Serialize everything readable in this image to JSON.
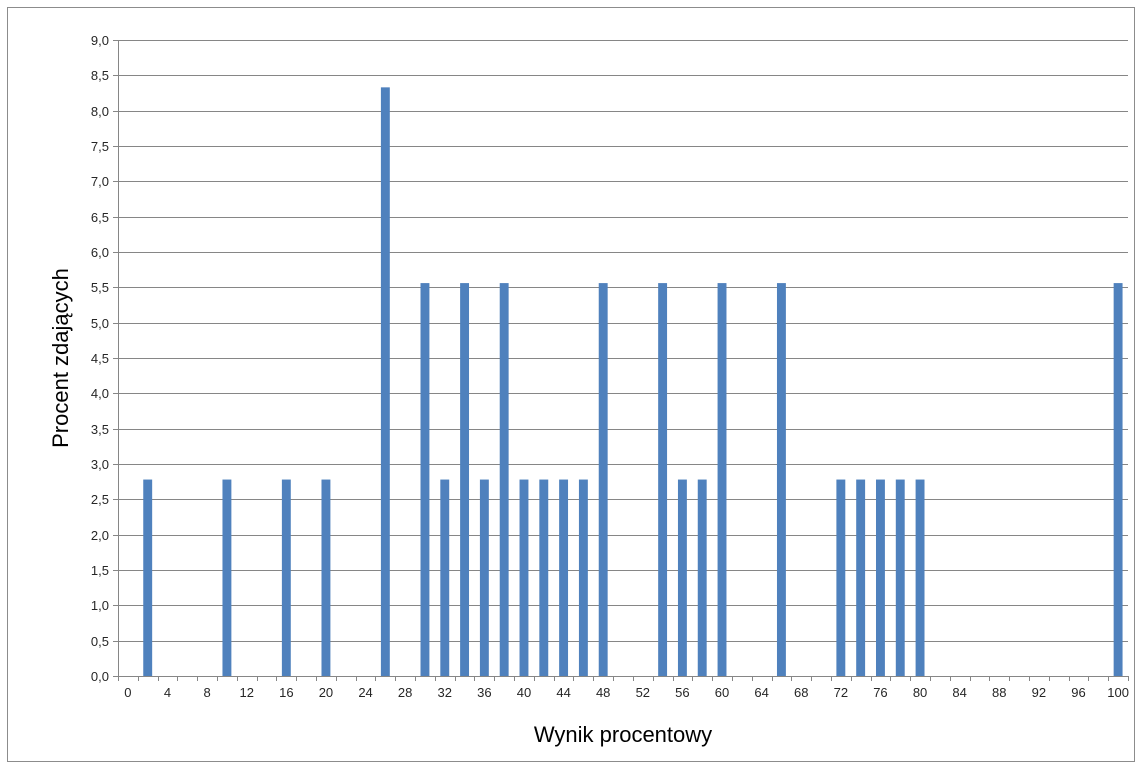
{
  "chart_data": {
    "type": "bar",
    "title": "",
    "xlabel": "Wynik procentowy",
    "ylabel": "Procent zdających",
    "xlim": [
      0,
      100
    ],
    "ylim": [
      0,
      9
    ],
    "x_ticks": [
      "0",
      "4",
      "8",
      "12",
      "16",
      "20",
      "24",
      "28",
      "32",
      "36",
      "40",
      "44",
      "48",
      "52",
      "56",
      "60",
      "64",
      "68",
      "72",
      "76",
      "80",
      "84",
      "88",
      "92",
      "96",
      "100"
    ],
    "y_ticks": [
      "0,0",
      "0,5",
      "1,0",
      "1,5",
      "2,0",
      "2,5",
      "3,0",
      "3,5",
      "4,0",
      "4,5",
      "5,0",
      "5,5",
      "6,0",
      "6,5",
      "7,0",
      "7,5",
      "8,0",
      "8,5",
      "9,0"
    ],
    "grid": true,
    "series": [
      {
        "color": "#4f81bd",
        "x": [
          2,
          10,
          16,
          20,
          26,
          30,
          32,
          34,
          36,
          38,
          40,
          42,
          44,
          46,
          48,
          54,
          56,
          58,
          60,
          66,
          72,
          74,
          76,
          78,
          80,
          100
        ],
        "values": [
          2.78,
          2.78,
          2.78,
          2.78,
          8.33,
          5.56,
          2.78,
          5.56,
          2.78,
          5.56,
          2.78,
          2.78,
          2.78,
          2.78,
          5.56,
          5.56,
          2.78,
          2.78,
          5.56,
          5.56,
          2.78,
          2.78,
          2.78,
          2.78,
          2.78,
          5.56
        ]
      }
    ]
  }
}
